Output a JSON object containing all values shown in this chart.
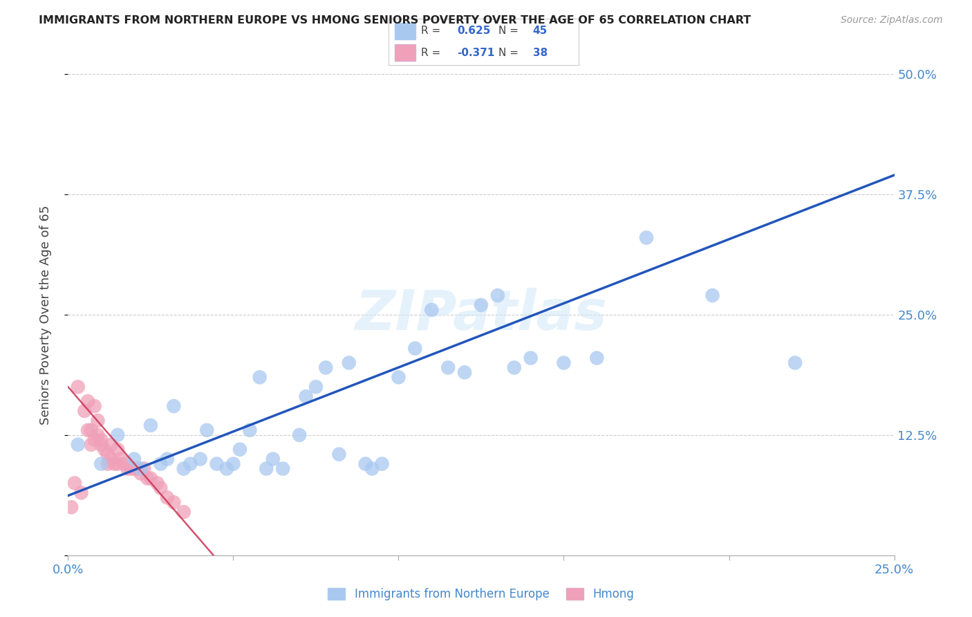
{
  "title": "IMMIGRANTS FROM NORTHERN EUROPE VS HMONG SENIORS POVERTY OVER THE AGE OF 65 CORRELATION CHART",
  "source": "Source: ZipAtlas.com",
  "xlabel_label": "Immigrants from Northern Europe",
  "ylabel_label": "Seniors Poverty Over the Age of 65",
  "xlim": [
    0.0,
    0.25
  ],
  "ylim": [
    0.0,
    0.5
  ],
  "xticks": [
    0.0,
    0.05,
    0.1,
    0.15,
    0.2,
    0.25
  ],
  "yticks": [
    0.0,
    0.125,
    0.25,
    0.375,
    0.5
  ],
  "xtick_labels": [
    "0.0%",
    "",
    "",
    "",
    "",
    "25.0%"
  ],
  "ytick_labels": [
    "",
    "12.5%",
    "25.0%",
    "37.5%",
    "50.0%"
  ],
  "blue_R": 0.625,
  "blue_N": 45,
  "pink_R": -0.371,
  "pink_N": 38,
  "blue_color": "#a8c8f0",
  "pink_color": "#f0a0b8",
  "blue_line_color": "#2255bb",
  "pink_line_color": "#cc3355",
  "watermark": "ZIPatlas",
  "blue_line_x0": 0.0,
  "blue_line_y0": 0.062,
  "blue_line_x1": 0.25,
  "blue_line_y1": 0.395,
  "pink_line_x0": 0.0,
  "pink_line_y0": 0.175,
  "pink_line_x1": 0.044,
  "pink_line_y1": 0.0,
  "blue_scatter_x": [
    0.003,
    0.01,
    0.015,
    0.02,
    0.022,
    0.025,
    0.028,
    0.03,
    0.032,
    0.035,
    0.037,
    0.04,
    0.042,
    0.045,
    0.048,
    0.05,
    0.052,
    0.055,
    0.058,
    0.06,
    0.062,
    0.065,
    0.07,
    0.072,
    0.075,
    0.078,
    0.082,
    0.085,
    0.09,
    0.092,
    0.095,
    0.1,
    0.105,
    0.11,
    0.115,
    0.12,
    0.125,
    0.13,
    0.135,
    0.14,
    0.15,
    0.16,
    0.175,
    0.195,
    0.22
  ],
  "blue_scatter_y": [
    0.115,
    0.095,
    0.125,
    0.1,
    0.09,
    0.135,
    0.095,
    0.1,
    0.155,
    0.09,
    0.095,
    0.1,
    0.13,
    0.095,
    0.09,
    0.095,
    0.11,
    0.13,
    0.185,
    0.09,
    0.1,
    0.09,
    0.125,
    0.165,
    0.175,
    0.195,
    0.105,
    0.2,
    0.095,
    0.09,
    0.095,
    0.185,
    0.215,
    0.255,
    0.195,
    0.19,
    0.26,
    0.27,
    0.195,
    0.205,
    0.2,
    0.205,
    0.33,
    0.27,
    0.2
  ],
  "pink_scatter_x": [
    0.001,
    0.002,
    0.003,
    0.004,
    0.005,
    0.006,
    0.006,
    0.007,
    0.007,
    0.008,
    0.008,
    0.009,
    0.009,
    0.01,
    0.01,
    0.011,
    0.012,
    0.012,
    0.013,
    0.013,
    0.014,
    0.015,
    0.015,
    0.016,
    0.017,
    0.018,
    0.019,
    0.02,
    0.021,
    0.022,
    0.023,
    0.024,
    0.025,
    0.027,
    0.028,
    0.03,
    0.032,
    0.035
  ],
  "pink_scatter_y": [
    0.05,
    0.075,
    0.175,
    0.065,
    0.15,
    0.13,
    0.16,
    0.115,
    0.13,
    0.12,
    0.155,
    0.125,
    0.14,
    0.115,
    0.12,
    0.11,
    0.105,
    0.095,
    0.1,
    0.115,
    0.095,
    0.095,
    0.11,
    0.1,
    0.095,
    0.09,
    0.09,
    0.09,
    0.09,
    0.085,
    0.09,
    0.08,
    0.08,
    0.075,
    0.07,
    0.06,
    0.055,
    0.045
  ]
}
